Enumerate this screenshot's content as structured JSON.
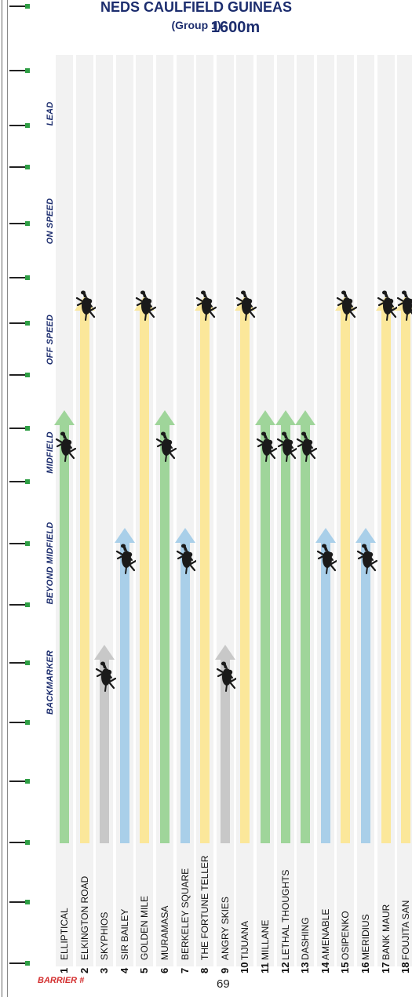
{
  "title": {
    "main": "NEDS CAULFIELD GUINEAS",
    "group": "(Group 1)"
  },
  "distance": "1600m",
  "position_labels": [
    "BACKMARKER",
    "BEYOND MIDFIELD",
    "MIDFIELD",
    "OFF SPEED",
    "ON SPEED",
    "LEAD"
  ],
  "colors": {
    "midfield": "#9fd59a",
    "off_speed": "#fbe79a",
    "backmarker": "#c8c8c8",
    "beyond_midfield": "#a9cfe9",
    "horse": "#1a1a1a",
    "rail_marker": "#2e9e44",
    "label_text": "#1c2d6e",
    "barrier_label": "#d32f2f"
  },
  "barrier_label": "BARRIER #",
  "page_number": "69",
  "icons": {
    "runner": "racehorse-with-jockey-icon",
    "rail": "rail-post-icon"
  },
  "runners": [
    {
      "barrier": "1",
      "name": "ELLIPTICAL",
      "position": "MIDFIELD",
      "color_key": "midfield"
    },
    {
      "barrier": "2",
      "name": "ELKINGTON ROAD",
      "position": "OFF SPEED",
      "color_key": "off_speed"
    },
    {
      "barrier": "3",
      "name": "SKYPHIOS",
      "position": "BACKMARKER",
      "color_key": "backmarker"
    },
    {
      "barrier": "4",
      "name": "SIR BAILEY",
      "position": "BEYOND MIDFIELD",
      "color_key": "beyond_midfield"
    },
    {
      "barrier": "5",
      "name": "GOLDEN MILE",
      "position": "OFF SPEED",
      "color_key": "off_speed"
    },
    {
      "barrier": "6",
      "name": "MURAMASA",
      "position": "MIDFIELD",
      "color_key": "midfield"
    },
    {
      "barrier": "7",
      "name": "BERKELEY SQUARE",
      "position": "BEYOND MIDFIELD",
      "color_key": "beyond_midfield"
    },
    {
      "barrier": "8",
      "name": "THE FORTUNE TELLER",
      "position": "OFF SPEED",
      "color_key": "off_speed"
    },
    {
      "barrier": "9",
      "name": "ANGRY SKIES",
      "position": "BACKMARKER",
      "color_key": "backmarker"
    },
    {
      "barrier": "10",
      "name": "TIJUANA",
      "position": "OFF SPEED",
      "color_key": "off_speed"
    },
    {
      "barrier": "11",
      "name": "MILLANE",
      "position": "MIDFIELD",
      "color_key": "midfield"
    },
    {
      "barrier": "12",
      "name": "LETHAL THOUGHTS",
      "position": "MIDFIELD",
      "color_key": "midfield"
    },
    {
      "barrier": "13",
      "name": "DASHING",
      "position": "MIDFIELD",
      "color_key": "midfield"
    },
    {
      "barrier": "14",
      "name": "AMENABLE",
      "position": "BEYOND MIDFIELD",
      "color_key": "beyond_midfield"
    },
    {
      "barrier": "15",
      "name": "OSIPENKO",
      "position": "OFF SPEED",
      "color_key": "off_speed"
    },
    {
      "barrier": "16",
      "name": "MERIDIUS",
      "position": "BEYOND MIDFIELD",
      "color_key": "beyond_midfield"
    },
    {
      "barrier": "17",
      "name": "BANK MAUR",
      "position": "OFF SPEED",
      "color_key": "off_speed"
    },
    {
      "barrier": "18",
      "name": "FOUJITA SAN",
      "position": "OFF SPEED",
      "color_key": "off_speed"
    }
  ]
}
